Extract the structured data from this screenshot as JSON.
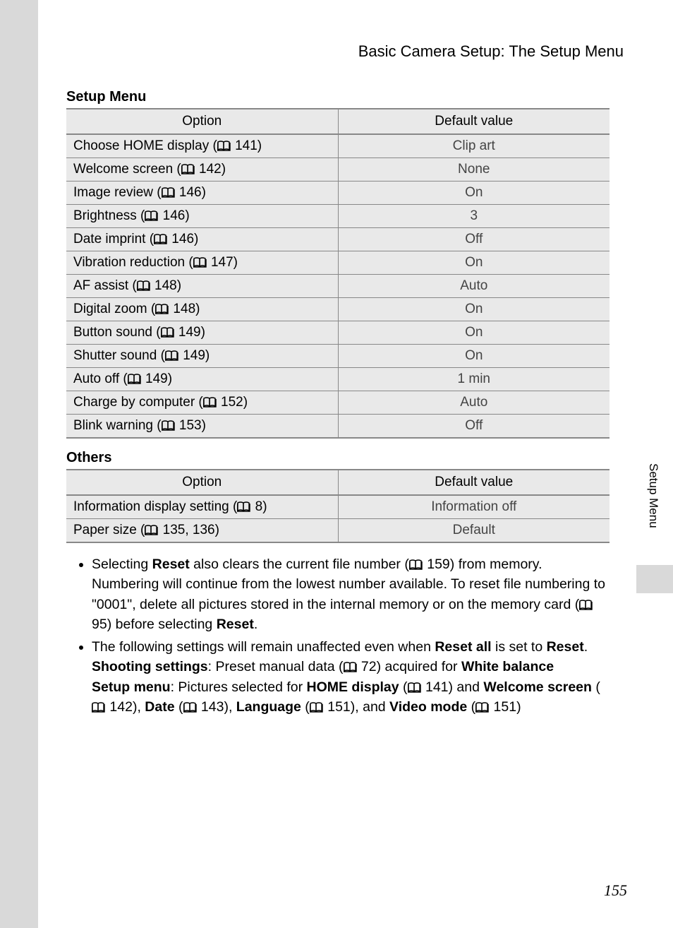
{
  "header": {
    "title": "Basic Camera Setup: The Setup Menu"
  },
  "sideTab": {
    "label": "Setup Menu"
  },
  "pageNumber": "155",
  "sections": {
    "setupMenu": {
      "title": "Setup Menu",
      "columns": {
        "option": "Option",
        "default": "Default value"
      },
      "rows": [
        {
          "option": "Choose HOME display",
          "page": "141",
          "default": "Clip art"
        },
        {
          "option": "Welcome screen",
          "page": "142",
          "default": "None"
        },
        {
          "option": "Image review",
          "page": "146",
          "default": "On"
        },
        {
          "option": "Brightness",
          "page": "146",
          "default": "3"
        },
        {
          "option": "Date imprint",
          "page": "146",
          "default": "Off"
        },
        {
          "option": "Vibration reduction",
          "page": "147",
          "default": "On"
        },
        {
          "option": "AF assist",
          "page": "148",
          "default": "Auto"
        },
        {
          "option": "Digital zoom",
          "page": "148",
          "default": "On"
        },
        {
          "option": "Button sound",
          "page": "149",
          "default": "On"
        },
        {
          "option": "Shutter sound",
          "page": "149",
          "default": "On"
        },
        {
          "option": "Auto off",
          "page": "149",
          "default": "1 min"
        },
        {
          "option": "Charge by computer",
          "page": "152",
          "default": "Auto"
        },
        {
          "option": "Blink warning",
          "page": "153",
          "default": "Off"
        }
      ]
    },
    "others": {
      "title": "Others",
      "columns": {
        "option": "Option",
        "default": "Default value"
      },
      "rows": [
        {
          "option": "Information display setting",
          "page": "8",
          "default": "Information off"
        },
        {
          "option": "Paper size",
          "page": "135, 136",
          "default": "Default"
        }
      ]
    }
  },
  "bullets": [
    {
      "parts": [
        {
          "t": "text",
          "v": "Selecting "
        },
        {
          "t": "bold",
          "v": "Reset"
        },
        {
          "t": "text",
          "v": " also clears the current file number ("
        },
        {
          "t": "icon"
        },
        {
          "t": "text",
          "v": " 159) from memory. Numbering will continue from the lowest number available. To reset file numbering to \"0001\", delete all pictures stored in the internal memory or on the memory card ("
        },
        {
          "t": "icon"
        },
        {
          "t": "text",
          "v": " 95) before selecting "
        },
        {
          "t": "bold",
          "v": "Reset"
        },
        {
          "t": "text",
          "v": "."
        }
      ]
    },
    {
      "parts": [
        {
          "t": "text",
          "v": "The following settings will remain unaffected even when "
        },
        {
          "t": "bold",
          "v": "Reset all"
        },
        {
          "t": "text",
          "v": " is set to "
        },
        {
          "t": "bold",
          "v": "Reset"
        },
        {
          "t": "text",
          "v": "."
        },
        {
          "t": "br"
        },
        {
          "t": "bold",
          "v": "Shooting settings"
        },
        {
          "t": "text",
          "v": ": Preset manual data ("
        },
        {
          "t": "icon"
        },
        {
          "t": "text",
          "v": " 72) acquired for "
        },
        {
          "t": "bold",
          "v": "White balance"
        },
        {
          "t": "br"
        },
        {
          "t": "bold",
          "v": "Setup menu"
        },
        {
          "t": "text",
          "v": ": Pictures selected for "
        },
        {
          "t": "bold",
          "v": "HOME display"
        },
        {
          "t": "text",
          "v": " ("
        },
        {
          "t": "icon"
        },
        {
          "t": "text",
          "v": " 141) and "
        },
        {
          "t": "bold",
          "v": "Welcome screen"
        },
        {
          "t": "text",
          "v": " ("
        },
        {
          "t": "icon"
        },
        {
          "t": "text",
          "v": " 142), "
        },
        {
          "t": "bold",
          "v": "Date"
        },
        {
          "t": "text",
          "v": " ("
        },
        {
          "t": "icon"
        },
        {
          "t": "text",
          "v": " 143), "
        },
        {
          "t": "bold",
          "v": "Language"
        },
        {
          "t": "text",
          "v": " ("
        },
        {
          "t": "icon"
        },
        {
          "t": "text",
          "v": " 151), and "
        },
        {
          "t": "bold",
          "v": "Video mode"
        },
        {
          "t": "text",
          "v": " ("
        },
        {
          "t": "icon"
        },
        {
          "t": "text",
          "v": " 151)"
        }
      ]
    }
  ]
}
